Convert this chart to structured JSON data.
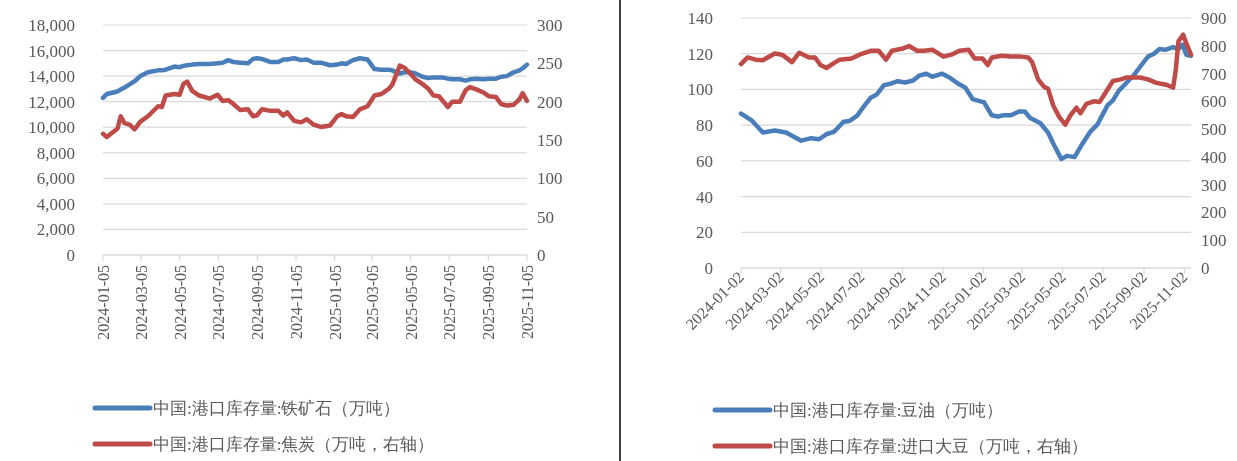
{
  "chart_data": [
    {
      "type": "line",
      "xlim": [
        "2024-01-05",
        "2025-11-05"
      ],
      "xticks": [
        "2024-01-05",
        "2024-03-05",
        "2024-05-05",
        "2024-07-05",
        "2024-09-05",
        "2024-11-05",
        "2025-01-05",
        "2025-03-05",
        "2025-05-05",
        "2025-07-05",
        "2025-09-05",
        "2025-11-05"
      ],
      "ylim": [
        0,
        18000
      ],
      "yticks": [
        0,
        {
          "value": 2000,
          "label": "2,000"
        },
        {
          "value": 4000,
          "label": "4,000"
        },
        {
          "value": 6000,
          "label": "6,000"
        },
        {
          "value": 8000,
          "label": "8,000"
        },
        {
          "value": 10000,
          "label": "10,000"
        },
        {
          "value": 12000,
          "label": "12,000"
        },
        {
          "value": 14000,
          "label": "14,000"
        },
        {
          "value": 16000,
          "label": "16,000"
        },
        {
          "value": 18000,
          "label": "18,000"
        }
      ],
      "y2lim": [
        0,
        300
      ],
      "y2ticks": [
        0,
        50,
        100,
        150,
        200,
        250,
        300
      ],
      "grid": "y",
      "legend": "bottom",
      "x": [
        "2024-01-05",
        "2024-01-11",
        "2024-01-28",
        "2024-02-02",
        "2024-02-08",
        "2024-02-16",
        "2024-02-24",
        "2024-03-04",
        "2024-03-16",
        "2024-04-01",
        "2024-04-07",
        "2024-04-13",
        "2024-04-27",
        "2024-05-05",
        "2024-05-11",
        "2024-05-17",
        "2024-05-25",
        "2024-06-05",
        "2024-06-22",
        "2024-07-04",
        "2024-07-12",
        "2024-07-21",
        "2024-07-29",
        "2024-08-09",
        "2024-08-21",
        "2024-08-29",
        "2024-09-04",
        "2024-09-12",
        "2024-09-26",
        "2024-10-08",
        "2024-10-16",
        "2024-10-22",
        "2024-11-02",
        "2024-11-13",
        "2024-11-22",
        "2024-12-03",
        "2024-12-14",
        "2024-12-29",
        "2025-01-09",
        "2025-01-16",
        "2025-01-23",
        "2025-02-03",
        "2025-02-14",
        "2025-02-26",
        "2025-03-09",
        "2025-03-20",
        "2025-04-01",
        "2025-04-06",
        "2025-04-18",
        "2025-04-26",
        "2025-05-04",
        "2025-05-13",
        "2025-05-24",
        "2025-06-02",
        "2025-06-10",
        "2025-06-19",
        "2025-06-24",
        "2025-07-03",
        "2025-07-10",
        "2025-07-22",
        "2025-07-31",
        "2025-08-07",
        "2025-08-17",
        "2025-08-28",
        "2025-09-06",
        "2025-09-17",
        "2025-09-25",
        "2025-10-04",
        "2025-10-15",
        "2025-10-24",
        "2025-10-29",
        "2025-11-05"
      ],
      "series": [
        {
          "name": "中国:港口库存量:铁矿石（万吨）",
          "color": "#4a7ebb",
          "values": [
            12300,
            12600,
            12800,
            12950,
            13100,
            13350,
            13600,
            14000,
            14300,
            14450,
            14450,
            14500,
            14750,
            14700,
            14800,
            14850,
            14900,
            14950,
            14950,
            15000,
            15050,
            15250,
            15100,
            15050,
            15000,
            15350,
            15400,
            15350,
            15100,
            15100,
            15300,
            15300,
            15400,
            15250,
            15300,
            15050,
            15050,
            14850,
            14900,
            15000,
            14950,
            15250,
            15400,
            15300,
            14550,
            14500,
            14500,
            14450,
            14200,
            14300,
            14300,
            14200,
            13950,
            13850,
            13900,
            13900,
            13900,
            13800,
            13750,
            13750,
            13650,
            13750,
            13800,
            13750,
            13800,
            13800,
            13950,
            14000,
            14300,
            14450,
            14600,
            14900
          ]
        },
        {
          "name": "中国:港口库存量:焦炭（万吨，右轴）",
          "color": "#be4b48",
          "axis": "y2",
          "values": [
            158,
            154,
            165,
            181,
            172,
            170,
            164,
            174,
            181,
            194,
            193,
            208,
            210,
            209,
            223,
            226,
            214,
            208,
            204,
            209,
            201,
            202,
            197,
            189,
            190,
            181,
            182,
            190,
            188,
            188,
            182,
            186,
            175,
            173,
            177,
            170,
            167,
            169,
            181,
            184,
            181,
            180,
            190,
            194,
            208,
            210,
            217,
            222,
            247,
            244,
            237,
            229,
            223,
            217,
            208,
            207,
            202,
            193,
            200,
            200,
            215,
            219,
            216,
            212,
            207,
            206,
            197,
            195,
            196,
            203,
            211,
            201
          ]
        }
      ]
    },
    {
      "type": "line",
      "xlim": [
        "2024-01-02",
        "2025-11-12"
      ],
      "xticks": [
        "2024-01-02",
        "2024-03-02",
        "2024-05-02",
        "2024-07-02",
        "2024-09-02",
        "2024-11-02",
        "2025-01-02",
        "2025-03-02",
        "2025-05-02",
        "2025-07-02",
        "2025-09-02",
        "2025-11-02"
      ],
      "ylim": [
        0,
        140
      ],
      "yticks": [
        0,
        20,
        40,
        60,
        80,
        100,
        120,
        140
      ],
      "y2lim": [
        0,
        900
      ],
      "y2ticks": [
        0,
        100,
        200,
        300,
        400,
        500,
        600,
        700,
        800,
        900
      ],
      "grid": "y",
      "legend": "bottom",
      "series": [
        {
          "name": "中国:港口库存量:豆油（万吨）",
          "color": "#4a7ebb",
          "x": [
            "2024-01-02",
            "2024-01-18",
            "2024-02-04",
            "2024-02-22",
            "2024-03-10",
            "2024-04-02",
            "2024-04-17",
            "2024-04-29",
            "2024-05-10",
            "2024-05-22",
            "2024-06-05",
            "2024-06-14",
            "2024-06-26",
            "2024-07-04",
            "2024-07-16",
            "2024-07-25",
            "2024-08-05",
            "2024-08-14",
            "2024-08-26",
            "2024-09-06",
            "2024-09-18",
            "2024-09-27",
            "2024-10-08",
            "2024-10-17",
            "2024-11-01",
            "2024-11-12",
            "2024-11-24",
            "2024-12-06",
            "2024-12-17",
            "2024-12-29",
            "2025-01-03",
            "2025-01-15",
            "2025-01-24",
            "2025-02-02",
            "2025-02-13",
            "2025-02-25",
            "2025-03-06",
            "2025-03-14",
            "2025-03-29",
            "2025-04-10",
            "2025-04-18",
            "2025-04-30",
            "2025-05-09",
            "2025-05-20",
            "2025-06-01",
            "2025-06-13",
            "2025-06-24",
            "2025-07-09",
            "2025-07-17",
            "2025-07-26",
            "2025-08-07",
            "2025-08-18",
            "2025-08-30",
            "2025-09-08",
            "2025-09-17",
            "2025-09-25",
            "2025-10-04",
            "2025-10-16",
            "2025-10-24",
            "2025-10-30",
            "2025-11-05",
            "2025-11-12"
          ],
          "values": [
            86.5,
            82.7,
            75.9,
            77,
            75.9,
            71.3,
            72.7,
            72.1,
            74.9,
            76.4,
            81.9,
            82.3,
            85.5,
            89.7,
            95.4,
            97.1,
            102.4,
            103.1,
            104.6,
            103.9,
            105,
            107.7,
            108.8,
            107.1,
            108.8,
            106.7,
            103.5,
            101,
            94.6,
            93.3,
            92.9,
            85.5,
            84.8,
            85.5,
            85.5,
            87.6,
            87.6,
            84,
            81.2,
            75.9,
            69.6,
            61.1,
            62.8,
            62.1,
            69.6,
            76.4,
            80.6,
            91.2,
            93.9,
            99.3,
            103.9,
            108.2,
            114.1,
            118.4,
            120,
            122.6,
            122.2,
            123.7,
            122.6,
            125.1,
            119.4,
            118.8
          ]
        },
        {
          "name": "中国:港口库存量:进口大豆（万吨，右轴）",
          "color": "#be4b48",
          "axis": "y2",
          "x": [
            "2024-01-02",
            "2024-01-12",
            "2024-01-24",
            "2024-02-04",
            "2024-02-22",
            "2024-03-04",
            "2024-03-19",
            "2024-03-30",
            "2024-04-14",
            "2024-04-23",
            "2024-05-01",
            "2024-05-10",
            "2024-05-19",
            "2024-05-30",
            "2024-06-17",
            "2024-06-29",
            "2024-07-16",
            "2024-07-28",
            "2024-08-08",
            "2024-08-17",
            "2024-09-01",
            "2024-09-12",
            "2024-09-24",
            "2024-10-05",
            "2024-10-17",
            "2024-11-03",
            "2024-11-15",
            "2024-11-27",
            "2024-12-11",
            "2024-12-20",
            "2025-01-01",
            "2025-01-09",
            "2025-01-15",
            "2025-01-30",
            "2025-02-13",
            "2025-02-28",
            "2025-03-11",
            "2025-03-17",
            "2025-03-26",
            "2025-04-04",
            "2025-04-10",
            "2025-04-18",
            "2025-04-27",
            "2025-05-06",
            "2025-05-14",
            "2025-05-23",
            "2025-05-29",
            "2025-06-07",
            "2025-06-18",
            "2025-06-27",
            "2025-07-06",
            "2025-07-17",
            "2025-07-29",
            "2025-08-07",
            "2025-08-16",
            "2025-08-27",
            "2025-09-08",
            "2025-09-19",
            "2025-09-28",
            "2025-10-07",
            "2025-10-16",
            "2025-10-20",
            "2025-10-24",
            "2025-10-31",
            "2025-11-06",
            "2025-11-12"
          ],
          "values": [
            734,
            758,
            750,
            748,
            772,
            768,
            741,
            775,
            758,
            758,
            731,
            720,
            734,
            750,
            754,
            768,
            782,
            782,
            750,
            782,
            789,
            799,
            782,
            782,
            786,
            761,
            768,
            782,
            786,
            754,
            754,
            731,
            758,
            764,
            761,
            761,
            758,
            741,
            679,
            652,
            645,
            584,
            543,
            516,
            550,
            577,
            557,
            591,
            600,
            598,
            632,
            673,
            679,
            686,
            686,
            686,
            679,
            668,
            663,
            659,
            649,
            713,
            816,
            840,
            802,
            768
          ]
        }
      ]
    }
  ]
}
